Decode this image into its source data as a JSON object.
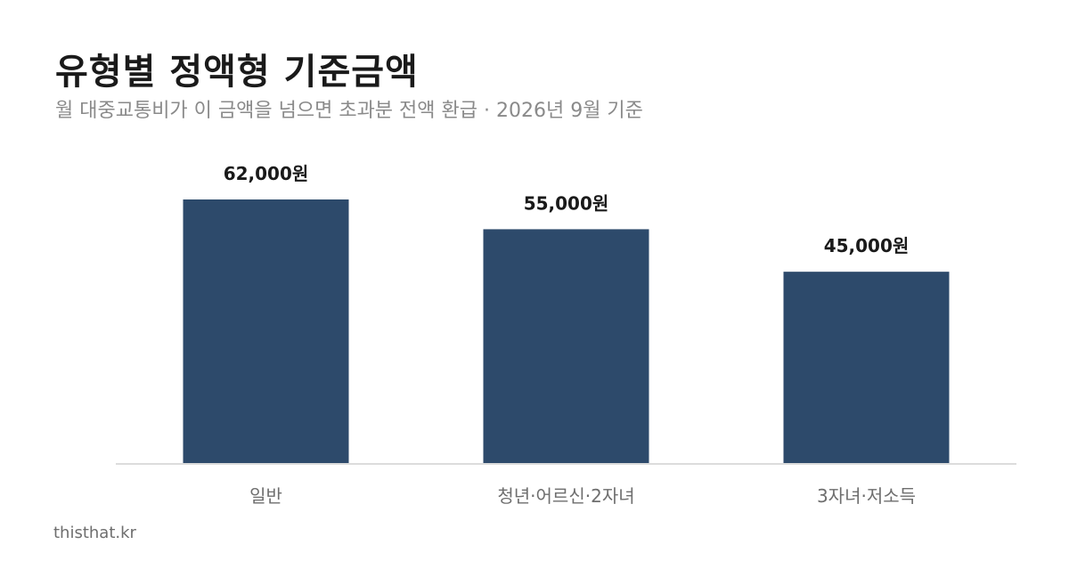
{
  "header": {
    "title": "유형별 정액형 기준금액",
    "subtitle": "월 대중교통비가 이 금액을 넘으면 초과분 전액 환급 · 2026년 9월 기준"
  },
  "footer": {
    "site": "thisthat.kr"
  },
  "colors": {
    "bar": "#2d4a6b",
    "baseline": "#dcdcdc"
  },
  "chart_data": {
    "type": "bar",
    "categories": [
      "일반",
      "청년·어르신·2자녀",
      "3자녀·저소득"
    ],
    "values": [
      62000,
      55000,
      45000
    ],
    "value_labels": [
      "62,000원",
      "55,000원",
      "45,000원"
    ],
    "ylim": [
      0,
      62000
    ],
    "grid": false,
    "legend": "none"
  }
}
